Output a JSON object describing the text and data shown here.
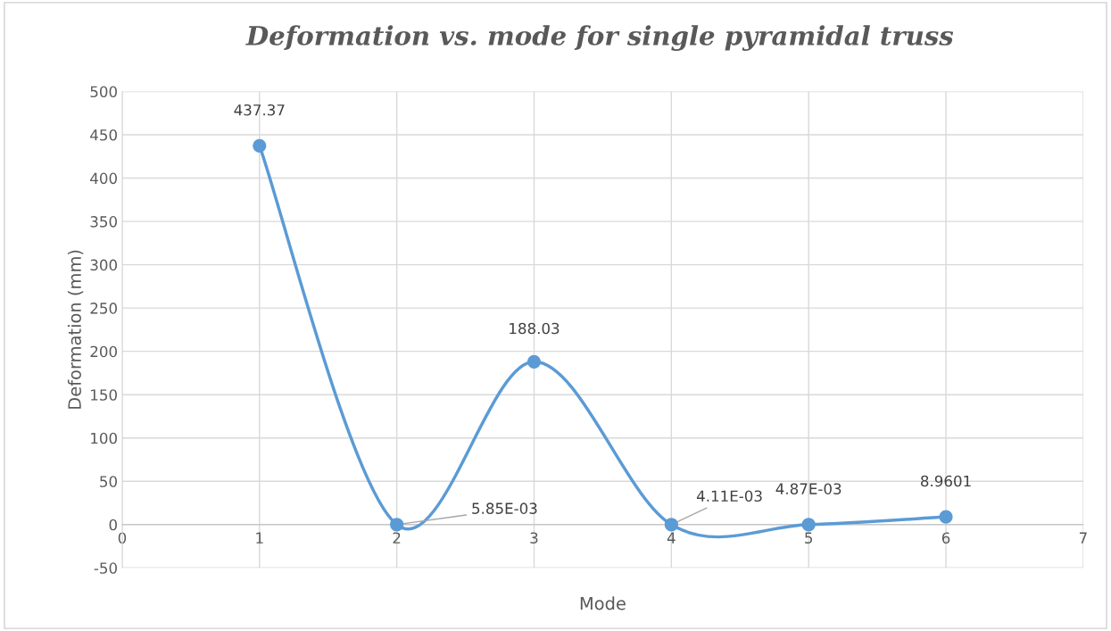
{
  "chart_data": {
    "type": "line",
    "title": "Deformation vs. mode for single pyramidal truss",
    "xlabel": "Mode",
    "ylabel": "Deformation (mm)",
    "x": [
      1,
      2,
      3,
      4,
      5,
      6
    ],
    "series": [
      {
        "color": "#5b9bd5",
        "values": [
          437.37,
          0.00585,
          188.03,
          0.00411,
          0.00487,
          8.9601
        ],
        "value_labels": [
          "437.37",
          "5.85E-03",
          "188.03",
          "4.11E-03",
          "4.87E-03",
          "8.9601"
        ]
      }
    ],
    "xlim": [
      0,
      7
    ],
    "xticks": [
      0,
      1,
      2,
      3,
      4,
      5,
      6,
      7
    ],
    "ylim": [
      -50,
      500
    ],
    "yticks": [
      -50,
      0,
      50,
      100,
      150,
      200,
      250,
      300,
      350,
      400,
      450,
      500
    ],
    "grid": true,
    "marker": "circle",
    "line_style": "solid",
    "legend": false
  }
}
